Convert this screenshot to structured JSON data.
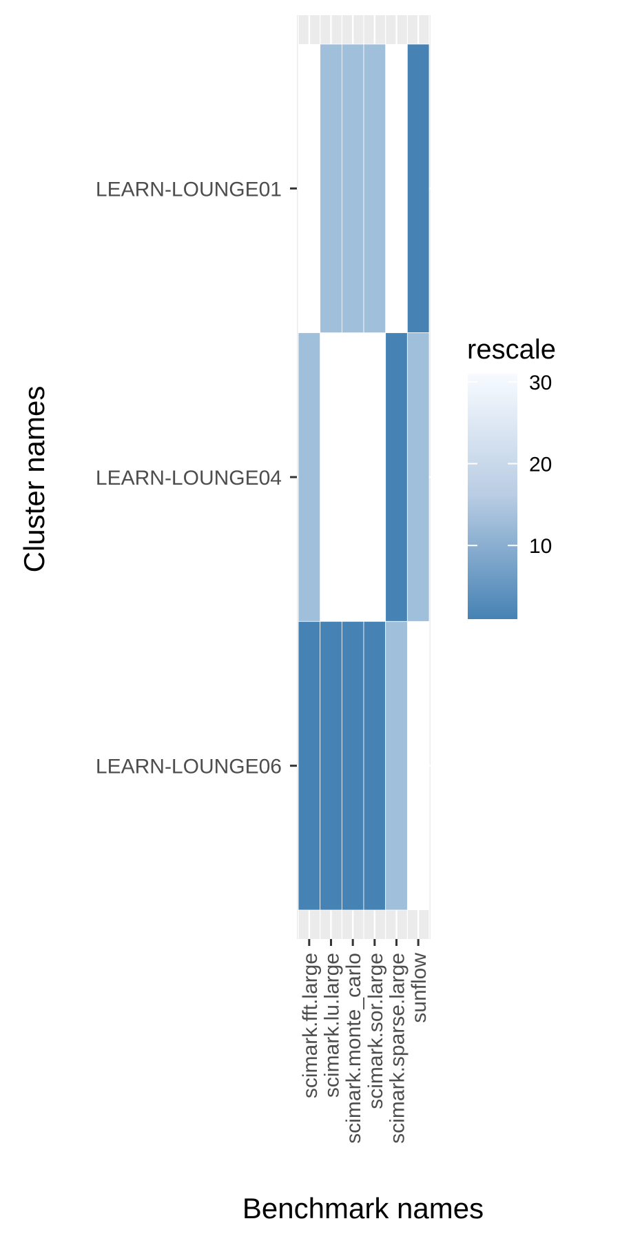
{
  "chart_data": {
    "type": "heatmap",
    "xlabel": "Benchmark names",
    "ylabel": "Cluster names",
    "x_categories": [
      "scimark.fft.large",
      "scimark.lu.large",
      "scimark.monte_carlo",
      "scimark.sor.large",
      "scimark.sparse.large",
      "sunflow"
    ],
    "y_categories": [
      "LEARN-LOUNGE01",
      "LEARN-LOUNGE04",
      "LEARN-LOUNGE06"
    ],
    "values": [
      [
        null,
        16,
        16,
        16,
        null,
        1
      ],
      [
        16,
        null,
        null,
        null,
        1,
        16
      ],
      [
        1,
        1,
        1,
        1,
        16,
        null
      ]
    ],
    "legend": {
      "title": "rescale",
      "ticks": [
        10,
        20,
        30
      ],
      "range": [
        1,
        31
      ],
      "low_color": "#4682b4",
      "high_color": "#f7fbff",
      "placement": "right"
    },
    "panel_background": "#ebebeb",
    "grid": true
  }
}
